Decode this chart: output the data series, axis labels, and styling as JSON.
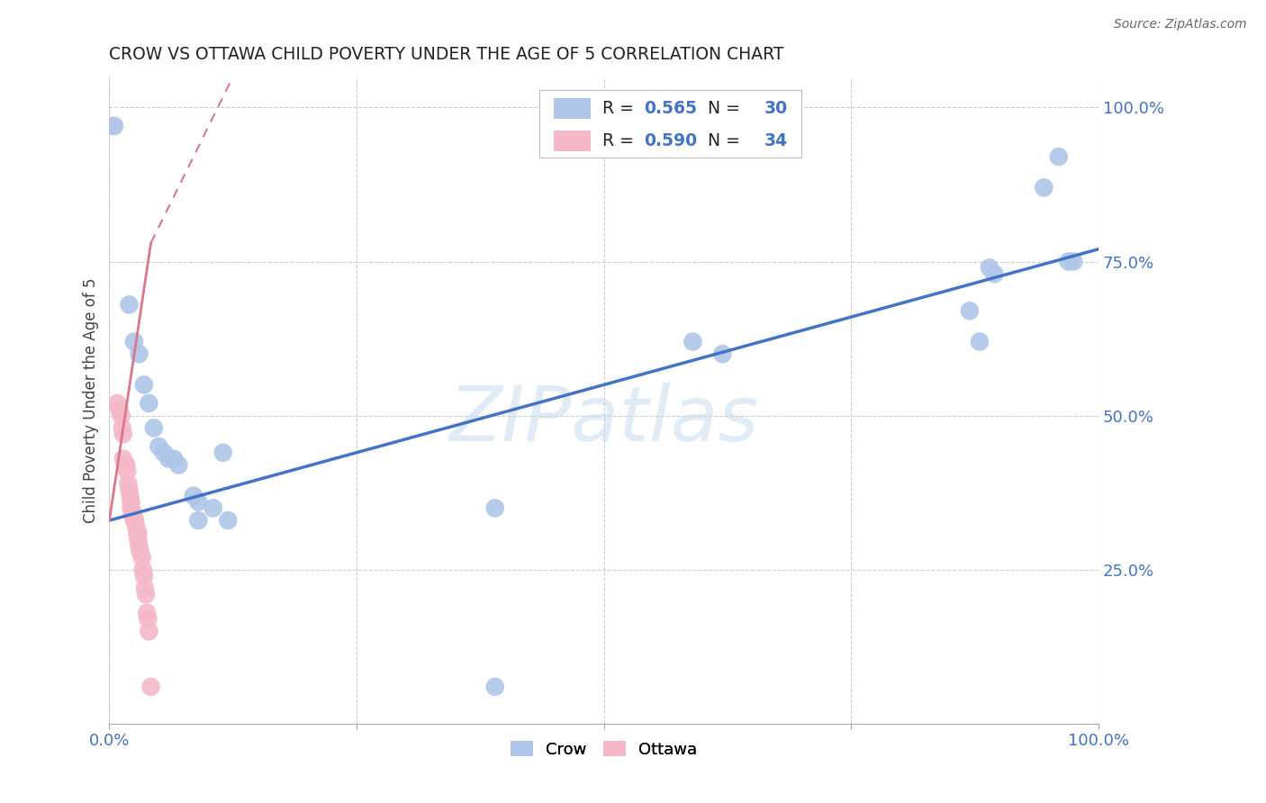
{
  "title": "CROW VS OTTAWA CHILD POVERTY UNDER THE AGE OF 5 CORRELATION CHART",
  "source": "Source: ZipAtlas.com",
  "ylabel": "Child Poverty Under the Age of 5",
  "watermark": "ZIPatlas",
  "crow_R": "0.565",
  "crow_N": "30",
  "ottawa_R": "0.590",
  "ottawa_N": "34",
  "crow_color": "#aec6e8",
  "ottawa_color": "#f4b8c8",
  "crow_line_color": "#4472C4",
  "ottawa_line_color": "#d9788a",
  "crow_scatter": [
    [
      0.005,
      0.97
    ],
    [
      0.02,
      0.68
    ],
    [
      0.025,
      0.62
    ],
    [
      0.03,
      0.6
    ],
    [
      0.035,
      0.55
    ],
    [
      0.04,
      0.52
    ],
    [
      0.045,
      0.48
    ],
    [
      0.05,
      0.45
    ],
    [
      0.055,
      0.44
    ],
    [
      0.06,
      0.43
    ],
    [
      0.065,
      0.43
    ],
    [
      0.07,
      0.42
    ],
    [
      0.085,
      0.37
    ],
    [
      0.09,
      0.36
    ],
    [
      0.09,
      0.33
    ],
    [
      0.105,
      0.35
    ],
    [
      0.115,
      0.44
    ],
    [
      0.12,
      0.33
    ],
    [
      0.39,
      0.35
    ],
    [
      0.39,
      0.06
    ],
    [
      0.59,
      0.62
    ],
    [
      0.62,
      0.6
    ],
    [
      0.87,
      0.67
    ],
    [
      0.88,
      0.62
    ],
    [
      0.89,
      0.74
    ],
    [
      0.895,
      0.73
    ],
    [
      0.945,
      0.87
    ],
    [
      0.96,
      0.92
    ],
    [
      0.97,
      0.75
    ],
    [
      0.975,
      0.75
    ]
  ],
  "ottawa_scatter": [
    [
      0.003,
      0.97
    ],
    [
      0.008,
      0.52
    ],
    [
      0.01,
      0.51
    ],
    [
      0.012,
      0.5
    ],
    [
      0.013,
      0.48
    ],
    [
      0.014,
      0.47
    ],
    [
      0.014,
      0.43
    ],
    [
      0.016,
      0.42
    ],
    [
      0.017,
      0.42
    ],
    [
      0.018,
      0.41
    ],
    [
      0.019,
      0.39
    ],
    [
      0.02,
      0.38
    ],
    [
      0.021,
      0.37
    ],
    [
      0.022,
      0.36
    ],
    [
      0.022,
      0.35
    ],
    [
      0.023,
      0.34
    ],
    [
      0.024,
      0.34
    ],
    [
      0.025,
      0.33
    ],
    [
      0.026,
      0.33
    ],
    [
      0.027,
      0.32
    ],
    [
      0.028,
      0.31
    ],
    [
      0.029,
      0.31
    ],
    [
      0.029,
      0.3
    ],
    [
      0.03,
      0.29
    ],
    [
      0.031,
      0.28
    ],
    [
      0.033,
      0.27
    ],
    [
      0.034,
      0.25
    ],
    [
      0.035,
      0.24
    ],
    [
      0.036,
      0.22
    ],
    [
      0.037,
      0.21
    ],
    [
      0.038,
      0.18
    ],
    [
      0.039,
      0.17
    ],
    [
      0.04,
      0.15
    ],
    [
      0.042,
      0.06
    ]
  ],
  "crow_trendline": [
    [
      0.0,
      0.33
    ],
    [
      1.0,
      0.77
    ]
  ],
  "ottawa_trendline_solid": [
    [
      0.0,
      0.33
    ],
    [
      0.042,
      0.78
    ]
  ],
  "ottawa_trendline_dashed": [
    [
      0.042,
      0.78
    ],
    [
      0.125,
      1.05
    ]
  ],
  "xlim": [
    0.0,
    1.0
  ],
  "ylim": [
    0.0,
    1.05
  ],
  "xticks": [
    0.0,
    0.25,
    0.5,
    0.75,
    1.0
  ],
  "yticks": [
    0.25,
    0.5,
    0.75,
    1.0
  ],
  "bg_color": "#ffffff",
  "grid_color": "#cccccc"
}
